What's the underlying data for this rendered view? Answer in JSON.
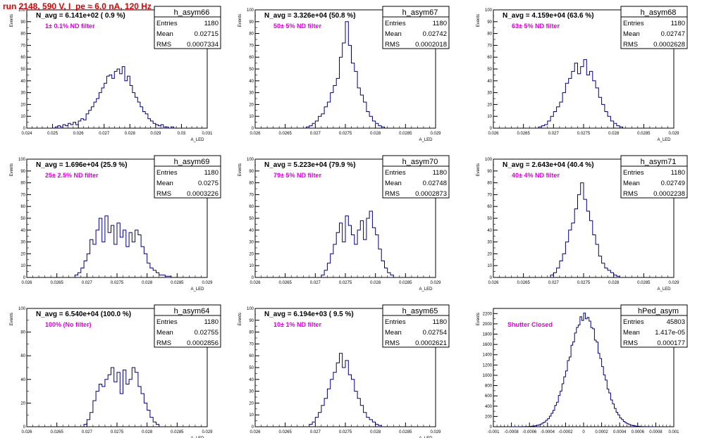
{
  "page_title": "run 2148,   590 V, I_pe ≈ 6.0 nA, 120 Hz",
  "stats_labels": {
    "entries": "Entries",
    "mean": "Mean",
    "rms": "RMS"
  },
  "colors": {
    "histogram": "#00007f",
    "annotation": "#e000e0",
    "title": "#e00000",
    "frame": "#000000"
  },
  "chart_data": [
    {
      "type": "bar",
      "name": "h_asym66",
      "navg_label": "N_avg = 6.141e+02 ( 0.9 %)",
      "filter_label": "1± 0.1% ND filter",
      "entries": "1180",
      "mean": "0.02715",
      "rms": "0.0007334",
      "xlabel": "A_LED",
      "ylabel": "Events",
      "xlim": [
        0.024,
        0.031
      ],
      "ylim": [
        0,
        100
      ],
      "xticks": [
        "0.024",
        "0.025",
        "0.026",
        "0.027",
        "0.028",
        "0.029",
        "0.03",
        "0.031"
      ],
      "xtick_values": [
        0.024,
        0.025,
        0.026,
        0.027,
        0.028,
        0.029,
        0.03,
        0.031
      ],
      "yticks": [
        "0",
        "10",
        "20",
        "30",
        "40",
        "50",
        "60",
        "70",
        "80",
        "90",
        "100"
      ],
      "ytick_values": [
        0,
        10,
        20,
        30,
        40,
        50,
        60,
        70,
        80,
        90,
        100
      ],
      "bin_start": 0.0251,
      "bin_width": 0.0001,
      "values": [
        1,
        2,
        1,
        3,
        2,
        4,
        3,
        5,
        3,
        6,
        8,
        7,
        12,
        15,
        18,
        22,
        25,
        30,
        34,
        38,
        44,
        45,
        42,
        48,
        50,
        46,
        52,
        40,
        44,
        36,
        30,
        26,
        22,
        18,
        14,
        12,
        8,
        6,
        4,
        3,
        2,
        3,
        1,
        1,
        0,
        1
      ]
    },
    {
      "type": "bar",
      "name": "h_asym67",
      "navg_label": "N_avg = 3.326e+04 (50.8 %)",
      "filter_label": "50± 5% ND filter",
      "entries": "1180",
      "mean": "0.02742",
      "rms": "0.0002018",
      "xlabel": "A_LED",
      "ylabel": "Events",
      "xlim": [
        0.026,
        0.029
      ],
      "ylim": [
        0,
        100
      ],
      "xticks": [
        "0.026",
        "0.0265",
        "0.027",
        "0.0275",
        "0.028",
        "0.0285",
        "0.029"
      ],
      "xtick_values": [
        0.026,
        0.0265,
        0.027,
        0.0275,
        0.028,
        0.0285,
        0.029
      ],
      "yticks": [
        "0",
        "10",
        "20",
        "30",
        "40",
        "50",
        "60",
        "70",
        "80",
        "90",
        "100"
      ],
      "ytick_values": [
        0,
        10,
        20,
        30,
        40,
        50,
        60,
        70,
        80,
        90,
        100
      ],
      "bin_start": 0.02685,
      "bin_width": 5e-05,
      "values": [
        1,
        2,
        4,
        6,
        10,
        12,
        18,
        22,
        30,
        36,
        42,
        60,
        72,
        90,
        70,
        55,
        48,
        34,
        28,
        22,
        14,
        10,
        6,
        4,
        2,
        1
      ]
    },
    {
      "type": "bar",
      "name": "h_asym68",
      "navg_label": "N_avg = 4.159e+04 (63.6 %)",
      "filter_label": "63± 5% ND filter",
      "entries": "1180",
      "mean": "0.02747",
      "rms": "0.0002628",
      "xlabel": "A_LED",
      "ylabel": "Events",
      "xlim": [
        0.026,
        0.029
      ],
      "ylim": [
        0,
        100
      ],
      "xticks": [
        "0.026",
        "0.0265",
        "0.027",
        "0.0275",
        "0.028",
        "0.0285",
        "0.029"
      ],
      "xtick_values": [
        0.026,
        0.0265,
        0.027,
        0.0275,
        0.028,
        0.0285,
        0.029
      ],
      "yticks": [
        "0",
        "10",
        "20",
        "30",
        "40",
        "50",
        "60",
        "70",
        "80",
        "90",
        "100"
      ],
      "ytick_values": [
        0,
        10,
        20,
        30,
        40,
        50,
        60,
        70,
        80,
        90,
        100
      ],
      "bin_start": 0.02675,
      "bin_width": 5e-05,
      "values": [
        1,
        2,
        3,
        6,
        10,
        14,
        18,
        22,
        30,
        38,
        42,
        48,
        55,
        46,
        52,
        58,
        45,
        48,
        40,
        34,
        26,
        20,
        14,
        10,
        6,
        4,
        2,
        1
      ]
    },
    {
      "type": "bar",
      "name": "h_asym69",
      "navg_label": "N_avg = 1.696e+04 (25.9 %)",
      "filter_label": "25± 2.5% ND filter",
      "entries": "1180",
      "mean": "0.0275",
      "rms": "0.0003226",
      "xlabel": "A_LED",
      "ylabel": "Events",
      "xlim": [
        0.026,
        0.029
      ],
      "ylim": [
        0,
        100
      ],
      "xticks": [
        "0.026",
        "0.0265",
        "0.027",
        "0.0275",
        "0.028",
        "0.0285",
        "0.029"
      ],
      "xtick_values": [
        0.026,
        0.0265,
        0.027,
        0.0275,
        0.028,
        0.0285,
        0.029
      ],
      "yticks": [
        "0",
        "10",
        "20",
        "30",
        "40",
        "50",
        "60",
        "70",
        "80",
        "90",
        "100"
      ],
      "ytick_values": [
        0,
        10,
        20,
        30,
        40,
        50,
        60,
        70,
        80,
        90,
        100
      ],
      "bin_start": 0.0268,
      "bin_width": 5e-05,
      "values": [
        2,
        4,
        8,
        14,
        20,
        32,
        28,
        40,
        50,
        30,
        52,
        38,
        44,
        28,
        46,
        34,
        40,
        26,
        38,
        30,
        40,
        36,
        26,
        20,
        12,
        8,
        6,
        4,
        2,
        2,
        1,
        1
      ]
    },
    {
      "type": "bar",
      "name": "h_asym70",
      "navg_label": "N_avg = 5.223e+04 (79.9 %)",
      "filter_label": "79± 5% ND filter",
      "entries": "1180",
      "mean": "0.02748",
      "rms": "0.0002873",
      "xlabel": "A_LED",
      "ylabel": "Events",
      "xlim": [
        0.026,
        0.029
      ],
      "ylim": [
        0,
        100
      ],
      "xticks": [
        "0.026",
        "0.0265",
        "0.027",
        "0.0275",
        "0.028",
        "0.0285",
        "0.029"
      ],
      "xtick_values": [
        0.026,
        0.0265,
        0.027,
        0.0275,
        0.028,
        0.0285,
        0.029
      ],
      "yticks": [
        "0",
        "10",
        "20",
        "30",
        "40",
        "50",
        "60",
        "70",
        "80",
        "90",
        "100"
      ],
      "ytick_values": [
        0,
        10,
        20,
        30,
        40,
        50,
        60,
        70,
        80,
        90,
        100
      ],
      "bin_start": 0.0271,
      "bin_width": 5e-05,
      "values": [
        2,
        6,
        12,
        20,
        28,
        38,
        46,
        30,
        52,
        44,
        36,
        28,
        40,
        48,
        32,
        50,
        56,
        42,
        36,
        24,
        14,
        8,
        4,
        2
      ]
    },
    {
      "type": "bar",
      "name": "h_asym71",
      "navg_label": "N_avg = 2.643e+04 (40.4 %)",
      "filter_label": "40± 4% ND filter",
      "entries": "1180",
      "mean": "0.02749",
      "rms": "0.0002238",
      "xlabel": "A_LED",
      "ylabel": "Events",
      "xlim": [
        0.026,
        0.029
      ],
      "ylim": [
        0,
        100
      ],
      "xticks": [
        "0.026",
        "0.0265",
        "0.027",
        "0.0275",
        "0.028",
        "0.0285",
        "0.029"
      ],
      "xtick_values": [
        0.026,
        0.0265,
        0.027,
        0.0275,
        0.028,
        0.0285,
        0.029
      ],
      "yticks": [
        "0",
        "10",
        "20",
        "30",
        "40",
        "50",
        "60",
        "70",
        "80",
        "90",
        "100"
      ],
      "ytick_values": [
        0,
        10,
        20,
        30,
        40,
        50,
        60,
        70,
        80,
        90,
        100
      ],
      "bin_start": 0.02695,
      "bin_width": 5e-05,
      "values": [
        2,
        4,
        8,
        14,
        20,
        30,
        40,
        46,
        58,
        70,
        80,
        66,
        56,
        48,
        36,
        28,
        18,
        12,
        8,
        6,
        4,
        2,
        1
      ]
    },
    {
      "type": "bar",
      "name": "h_asym64",
      "navg_label": "N_avg = 6.540e+04 (100.0 %)",
      "filter_label": "100% (No filter)",
      "entries": "1180",
      "mean": "0.02755",
      "rms": "0.0002856",
      "xlabel": "A_LED",
      "ylabel": "Events",
      "xlim": [
        0.026,
        0.029
      ],
      "ylim": [
        0,
        100
      ],
      "xticks": [
        "0.026",
        "0.0265",
        "0.027",
        "0.0275",
        "0.028",
        "0.0285",
        "0.029"
      ],
      "xtick_values": [
        0.026,
        0.0265,
        0.027,
        0.0275,
        0.028,
        0.0285,
        0.029
      ],
      "yticks": [
        "0",
        "20",
        "40",
        "60",
        "80",
        "100"
      ],
      "ytick_values": [
        0,
        20,
        40,
        60,
        80,
        100
      ],
      "bin_start": 0.02695,
      "bin_width": 5e-05,
      "values": [
        2,
        6,
        12,
        22,
        30,
        36,
        34,
        40,
        44,
        50,
        38,
        46,
        28,
        48,
        36,
        40,
        50,
        46,
        34,
        28,
        20,
        14,
        8,
        4,
        2
      ]
    },
    {
      "type": "bar",
      "name": "h_asym65",
      "navg_label": "N_avg = 6.194e+03 ( 9.5 %)",
      "filter_label": "10± 1% ND filter",
      "entries": "1180",
      "mean": "0.02754",
      "rms": "0.0002621",
      "xlabel": "A_LED",
      "ylabel": "Events",
      "xlim": [
        0.026,
        0.029
      ],
      "ylim": [
        0,
        100
      ],
      "xticks": [
        "0.026",
        "0.0265",
        "0.027",
        "0.0275",
        "0.028",
        "0.0285",
        "0.029"
      ],
      "xtick_values": [
        0.026,
        0.0265,
        0.027,
        0.0275,
        0.028,
        0.0285,
        0.029
      ],
      "yticks": [
        "0",
        "10",
        "20",
        "30",
        "40",
        "50",
        "60",
        "70",
        "80",
        "90",
        "100"
      ],
      "ytick_values": [
        0,
        10,
        20,
        30,
        40,
        50,
        60,
        70,
        80,
        90,
        100
      ],
      "bin_start": 0.0269,
      "bin_width": 5e-05,
      "values": [
        2,
        4,
        8,
        12,
        18,
        24,
        32,
        40,
        46,
        54,
        62,
        50,
        56,
        44,
        40,
        30,
        24,
        18,
        12,
        8,
        6,
        4,
        2,
        1
      ]
    },
    {
      "type": "bar",
      "name": "hPed_asym",
      "navg_label": "",
      "filter_label": "Shutter Closed",
      "entries": "45803",
      "mean": "1.417e-05",
      "rms": "0.000177",
      "xlabel": "",
      "ylabel": "Events",
      "xlim": [
        -0.001,
        0.001
      ],
      "ylim": [
        0,
        2300
      ],
      "xticks": [
        "-0.001",
        "-0.0008",
        "-0.0006",
        "-0.0004",
        "-0.0002",
        "0",
        "0.0002",
        "0.0004",
        "0.0006",
        "0.0008",
        "0.001"
      ],
      "xtick_values": [
        -0.001,
        -0.0008,
        -0.0006,
        -0.0004,
        -0.0002,
        0,
        0.0002,
        0.0004,
        0.0006,
        0.0008,
        0.001
      ],
      "yticks": [
        "0",
        "200",
        "400",
        "600",
        "800",
        "1000",
        "1200",
        "1400",
        "1600",
        "1800",
        "2000",
        "2200"
      ],
      "ytick_values": [
        0,
        200,
        400,
        600,
        800,
        1000,
        1200,
        1400,
        1600,
        1800,
        2000,
        2200
      ],
      "gaussian": {
        "mean": 1.417e-05,
        "sigma": 0.000177,
        "peak": 2150
      },
      "bin_start": -0.0008,
      "bin_width": 2e-05,
      "bin_count": 80
    }
  ]
}
